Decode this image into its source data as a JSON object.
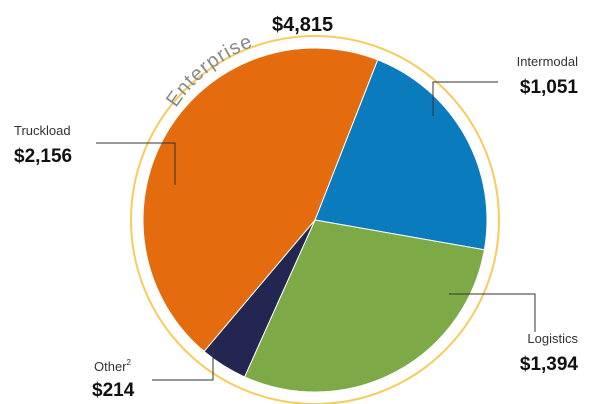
{
  "chart_data": {
    "type": "pie",
    "segment_label": "Enterprise",
    "total_label": "$4,815",
    "slices": [
      {
        "name": "Intermodal",
        "value": 1051,
        "value_label": "$1,051",
        "color": "#0a7bbd"
      },
      {
        "name": "Logistics",
        "value": 1394,
        "value_label": "$1,394",
        "color": "#7daa46"
      },
      {
        "name": "Other",
        "name_suffix": "2",
        "value": 214,
        "value_label": "$214",
        "color": "#232650"
      },
      {
        "name": "Truckload",
        "value": 2156,
        "value_label": "$2,156",
        "color": "#e46c0e"
      }
    ],
    "ring_color": "#f6cd5c"
  }
}
